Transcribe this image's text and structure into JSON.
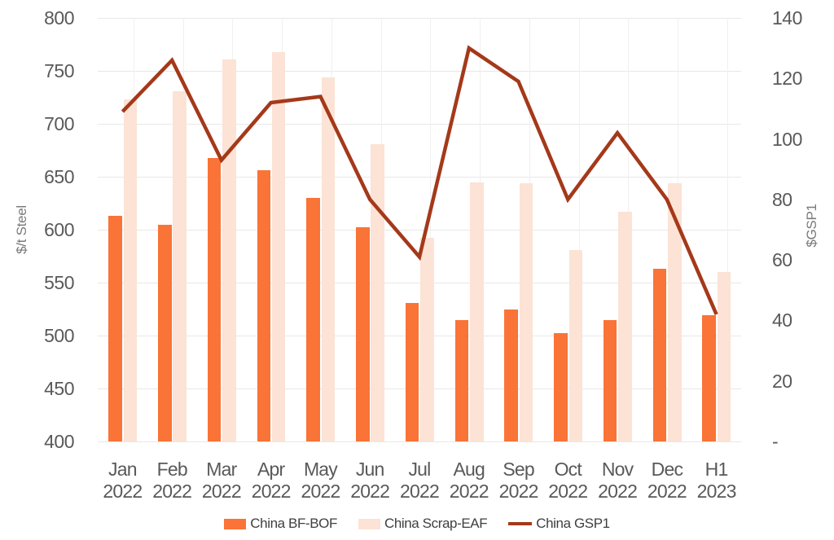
{
  "chart_data": {
    "type": "combo",
    "title": "",
    "legend_position": "bottom",
    "grid": true,
    "colors": {
      "bf_bof_bar": "#fa7337",
      "scrap_eaf_bar": "#fce3d5",
      "gsp1_line": "#a4391a",
      "gridline": "#e8e8e8",
      "tick_text": "#595959",
      "legend_text": "#3f3f3f",
      "axis_title_text": "#7a7a7a"
    },
    "left_axis": {
      "label": "$/t Steel",
      "min": 400,
      "max": 800,
      "step": 50,
      "ticks": [
        "800",
        "750",
        "700",
        "650",
        "600",
        "550",
        "500",
        "450",
        "400"
      ]
    },
    "right_axis": {
      "label": "$GSP1",
      "min": 0,
      "max": 140,
      "step": 20,
      "ticks": [
        "140",
        "120",
        "100",
        "80",
        "60",
        "40",
        "20",
        "-"
      ],
      "tick_values": [
        140,
        120,
        100,
        80,
        60,
        40,
        20,
        0
      ]
    },
    "categories": [
      {
        "month": "Jan",
        "year": "2022"
      },
      {
        "month": "Feb",
        "year": "2022"
      },
      {
        "month": "Mar",
        "year": "2022"
      },
      {
        "month": "Apr",
        "year": "2022"
      },
      {
        "month": "May",
        "year": "2022"
      },
      {
        "month": "Jun",
        "year": "2022"
      },
      {
        "month": "Jul",
        "year": "2022"
      },
      {
        "month": "Aug",
        "year": "2022"
      },
      {
        "month": "Sep",
        "year": "2022"
      },
      {
        "month": "Oct",
        "year": "2022"
      },
      {
        "month": "Nov",
        "year": "2022"
      },
      {
        "month": "Dec",
        "year": "2022"
      },
      {
        "month": "H1",
        "year": "2023"
      }
    ],
    "series": [
      {
        "name": "China BF-BOF",
        "type": "bar",
        "axis": "left",
        "color": "#fa7337",
        "values": [
          613,
          605,
          668,
          656,
          630,
          602,
          531,
          515,
          525,
          502,
          515,
          563,
          519
        ]
      },
      {
        "name": "China Scrap-EAF",
        "type": "bar",
        "axis": "left",
        "color": "#fce3d5",
        "values": [
          723,
          731,
          761,
          768,
          744,
          681,
          592,
          645,
          644,
          581,
          617,
          644,
          560
        ]
      },
      {
        "name": "China GSP1",
        "type": "line",
        "axis": "right",
        "color": "#a4391a",
        "values": [
          109,
          126,
          93,
          112,
          114,
          80,
          61,
          130,
          119,
          80,
          102,
          80,
          42
        ]
      }
    ]
  }
}
